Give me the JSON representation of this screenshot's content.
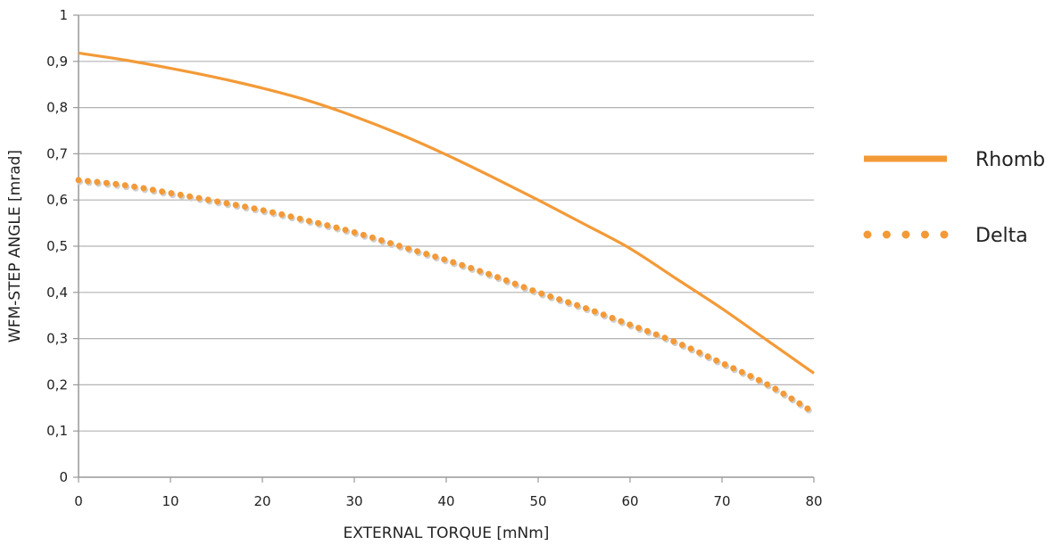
{
  "chart_data": {
    "type": "line",
    "title": "",
    "xlabel": "EXTERNAL TORQUE [mNm]",
    "ylabel": "WFM-STEP ANGLE [mrad]",
    "xlim": [
      0,
      80
    ],
    "ylim": [
      0,
      1
    ],
    "xticks": [
      0,
      10,
      20,
      30,
      40,
      50,
      60,
      70,
      80
    ],
    "yticks": [
      0,
      0.1,
      0.2,
      0.3,
      0.4,
      0.5,
      0.6,
      0.7,
      0.8,
      0.9,
      1
    ],
    "xtick_labels": [
      "0",
      "10",
      "20",
      "30",
      "40",
      "50",
      "60",
      "70",
      "80"
    ],
    "ytick_labels": [
      "0",
      "0,1",
      "0,2",
      "0,3",
      "0,4",
      "0,5",
      "0,6",
      "0,7",
      "0,8",
      "0,9",
      "1"
    ],
    "grid": true,
    "legend_position": "right",
    "series": [
      {
        "name": "Rhomb",
        "style": "solid",
        "color": "#F39A37",
        "x": [
          0,
          5,
          10,
          15,
          20,
          25,
          30,
          35,
          40,
          45,
          50,
          55,
          60,
          65,
          70,
          75,
          80
        ],
        "y": [
          0.918,
          0.903,
          0.885,
          0.865,
          0.842,
          0.815,
          0.781,
          0.742,
          0.698,
          0.65,
          0.6,
          0.548,
          0.495,
          0.43,
          0.365,
          0.295,
          0.225
        ]
      },
      {
        "name": "Delta",
        "style": "dotted",
        "color": "#F39A37",
        "x": [
          0,
          5,
          10,
          15,
          20,
          25,
          30,
          35,
          40,
          45,
          50,
          55,
          60,
          65,
          70,
          75,
          80
        ],
        "y": [
          0.643,
          0.632,
          0.615,
          0.597,
          0.578,
          0.555,
          0.53,
          0.5,
          0.47,
          0.437,
          0.4,
          0.367,
          0.33,
          0.292,
          0.247,
          0.2,
          0.14
        ]
      }
    ]
  }
}
